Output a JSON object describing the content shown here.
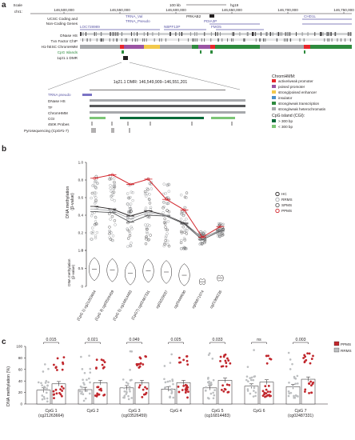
{
  "panel_a": {
    "letter": "a",
    "scale_label": "Scale",
    "scale_value": "100 kb",
    "assembly": "hg19",
    "chrom": "chr1:",
    "positions": [
      "146,500,000",
      "146,550,000",
      "146,600,000",
      "146,650,000",
      "146,700,000",
      "146,750,000"
    ],
    "track_labels": [
      "UCSC Coding and",
      "Non-Coding Genes",
      "DNase HS",
      "Txn Factor ChIP",
      "H1-hESC ChromHMM",
      "CpG Islands",
      "1q21.1 DMR"
    ],
    "gene_labels": [
      "LOC728989",
      "TRNA_Val",
      "TRNA_Pseudo",
      "NBPF13P",
      "PRKAB2",
      "PDIA3P",
      "FMO5",
      "CHD1L"
    ],
    "zoom_title": "1q21.1 DMR: 146,549,909–146,551,201",
    "zoom_gene": "TRNA pseudo",
    "zoom_tracks": [
      "DNase HS",
      "TF",
      "ChromHMM",
      "CGI",
      "450K Probes",
      "Pyrosequencing (CpG#1-7)"
    ],
    "legend_title": "ChromHMM:",
    "legend": [
      {
        "label": "active/weak promoter",
        "color": "#e8262b"
      },
      {
        "label": "poised promoter",
        "color": "#9b55a3"
      },
      {
        "label": "strong/poised enhancer",
        "color": "#f2c94c"
      },
      {
        "label": "insulator",
        "color": "#4a90c8"
      },
      {
        "label": "strong/weak transcription",
        "color": "#2e8b3e"
      },
      {
        "label": "strong/weak heterochromatin",
        "color": "#a7a9ac"
      }
    ],
    "cgi_title": "CpG island (CGI):",
    "cgi_legend": [
      {
        "label": "> 300 bp",
        "color": "#0b6b3a"
      },
      {
        "label": "< 300 bp",
        "color": "#7cc576"
      }
    ]
  },
  "panel_b": {
    "letter": "b",
    "ylabel_top": "DNA methylation\n(β-value)",
    "ylabel_bottom": "DNA methylation\n(β-value)",
    "legend": [
      {
        "label": "HC",
        "color": "#231f20"
      },
      {
        "label": "RRMS",
        "color": "#a7a9ac"
      },
      {
        "label": "SPMS",
        "color": "#58595b"
      },
      {
        "label": "PPMS",
        "color": "#d2232a"
      }
    ]
  },
  "panel_c": {
    "letter": "c",
    "ylabel": "DNA methylation (%)",
    "legend": [
      {
        "label": "PPMS",
        "color": "#c1272d"
      },
      {
        "label": "RRMS",
        "color": "#bcbec0"
      }
    ]
  },
  "chart_data": [
    {
      "type": "line",
      "panel": "b (top)",
      "ylabel": "DNA methylation (β-value)",
      "ylim": [
        0,
        1
      ],
      "yticks": [
        "0",
        "0.2",
        "0.4",
        "0.6",
        "0.8",
        "1.0"
      ],
      "categories": [
        "(CpG 1) cg21263664",
        "(CpG 3) cg03526459",
        "(CpG 5) cg16814483",
        "(CpG7) cg02487331",
        "cg03229037",
        "cg20449690",
        "cg06871074",
        "cg21908235"
      ],
      "series": [
        {
          "name": "HC",
          "values": [
            0.5,
            0.47,
            0.39,
            0.45,
            0.4,
            0.31,
            0.14,
            0.23
          ]
        },
        {
          "name": "RRMS",
          "values": [
            0.47,
            0.45,
            0.36,
            0.43,
            0.4,
            0.3,
            0.14,
            0.23
          ]
        },
        {
          "name": "SPMS",
          "values": [
            0.44,
            0.43,
            0.32,
            0.4,
            0.39,
            0.3,
            0.12,
            0.22
          ]
        },
        {
          "name": "PPMS",
          "values": [
            0.82,
            0.86,
            0.75,
            0.81,
            0.58,
            0.46,
            0.15,
            0.27
          ]
        }
      ]
    },
    {
      "type": "violin",
      "panel": "b (bottom)",
      "ylabel": "DNA methylation (β-value)",
      "ylim": [
        0,
        1
      ],
      "yticks": [
        "0",
        "0.5",
        "1.0"
      ],
      "categories": [
        "(CpG 1) cg21263664",
        "(CpG 3) cg03526459",
        "(CpG 5) cg16814483",
        "(CpG7) cg02487331",
        "cg03229037",
        "cg20449690",
        "cg06871074",
        "cg21908235"
      ],
      "medians": [
        0.48,
        0.45,
        0.36,
        0.43,
        0.4,
        0.31,
        0.13,
        0.23
      ]
    },
    {
      "type": "bar",
      "panel": "c",
      "ylabel": "DNA methylation (%)",
      "ylim": [
        0,
        100
      ],
      "yticks": [
        "0",
        "20",
        "40",
        "60",
        "80",
        "100"
      ],
      "categories": [
        "CpG 1\n(cg21263664)",
        "CpG 2",
        "CpG 3\n(cg03526459)",
        "CpG 4",
        "CpG 5\n(cg16814483)",
        "CpG 6",
        "CpG 7\n(cg02487331)"
      ],
      "pvalues": [
        "0.015",
        "0.021",
        "0.049",
        "0.025",
        "0.033",
        "ns",
        "0.003"
      ],
      "series": [
        {
          "name": "RRMS",
          "values": [
            24,
            25,
            28,
            26,
            28,
            31,
            30
          ]
        },
        {
          "name": "PPMS",
          "values": [
            35,
            37,
            37,
            37,
            41,
            38,
            43
          ]
        }
      ]
    }
  ]
}
